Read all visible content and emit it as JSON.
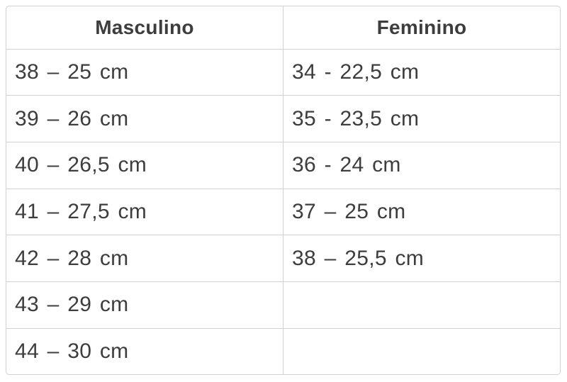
{
  "chart_data": {
    "type": "table",
    "title": "",
    "headers": [
      "Masculino",
      "Feminino"
    ],
    "rows": [
      [
        "38 – 25 cm",
        "34 - 22,5 cm"
      ],
      [
        "39 – 26 cm",
        "35 - 23,5 cm"
      ],
      [
        "40 – 26,5 cm",
        "36 - 24 cm"
      ],
      [
        "41 – 27,5 cm",
        "37 – 25 cm"
      ],
      [
        "42 – 28 cm",
        "38 – 25,5 cm"
      ],
      [
        "43 – 29 cm",
        ""
      ],
      [
        "44 – 30 cm",
        ""
      ]
    ]
  },
  "colors": {
    "border": "#d0d0d0",
    "text": "#3d3d3d",
    "background": "#ffffff"
  }
}
